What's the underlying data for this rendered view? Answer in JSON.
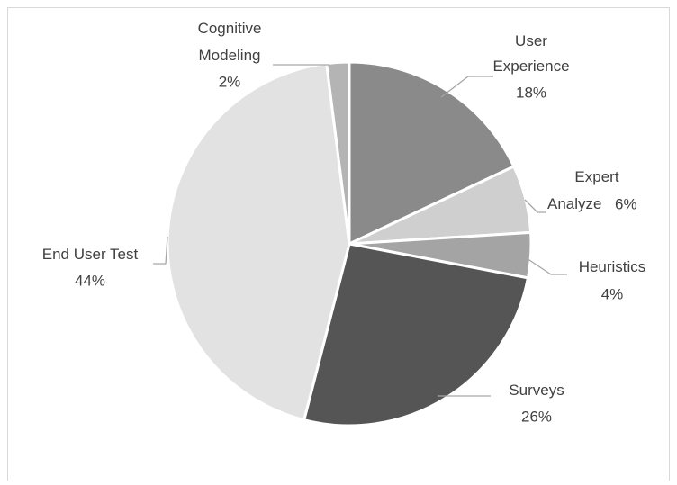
{
  "chart_data": {
    "type": "pie",
    "categories": [
      "User Experience",
      "Expert Analyze",
      "Heuristics",
      "Surveys",
      "End User Test",
      "Cognitive Modeling"
    ],
    "values": [
      18,
      6,
      4,
      26,
      44,
      2
    ],
    "value_labels": [
      "18%",
      "6%",
      "4%",
      "26%",
      "44%",
      "2%"
    ],
    "colors": [
      "#8a8a8a",
      "#cfcfcf",
      "#a4a4a4",
      "#555555",
      "#e2e2e2",
      "#b4b4b4"
    ]
  }
}
